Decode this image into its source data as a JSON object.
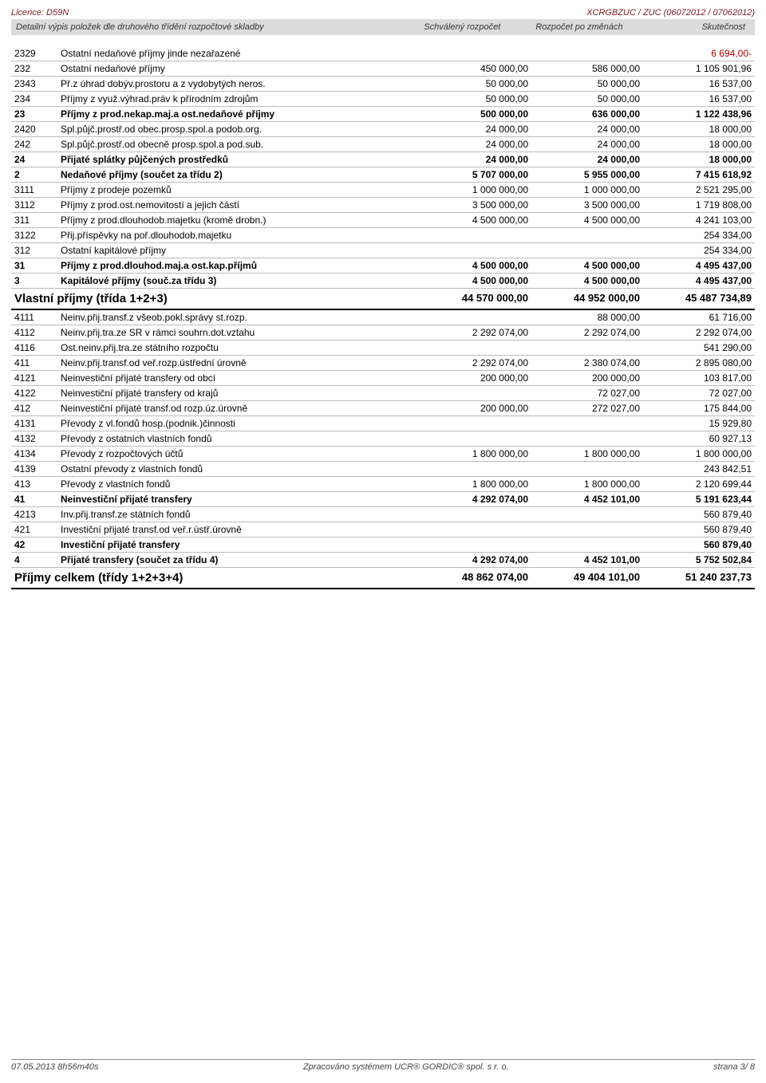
{
  "top": {
    "left": "Licence: D59N",
    "right": "XCRGBZUC / ZUC  (06072012 / 07062012)"
  },
  "header": {
    "label": "Detailní výpis položek dle druhového třídění rozpočtové skladby",
    "c1": "Schválený rozpočet",
    "c2": "Rozpočet po změnách",
    "c3": "Skutečnost"
  },
  "rows": [
    {
      "code": "2329",
      "desc": "Ostatní nedaňové příjmy jinde nezařazené",
      "v": [
        "",
        "",
        "6 694,00-"
      ],
      "red": true
    },
    {
      "code": "232",
      "desc": "Ostatní nedaňové příjmy",
      "v": [
        "450 000,00",
        "586 000,00",
        "1 105 901,96"
      ]
    },
    {
      "code": "2343",
      "desc": "Př.z úhrad dobýv.prostoru a z vydobytých neros.",
      "v": [
        "50 000,00",
        "50 000,00",
        "16 537,00"
      ]
    },
    {
      "code": "234",
      "desc": "Příjmy z využ.výhrad.práv k přírodním zdrojům",
      "v": [
        "50 000,00",
        "50 000,00",
        "16 537,00"
      ]
    },
    {
      "code": "23",
      "desc": "Příjmy z prod.nekap.maj.a ost.nedaňové příjmy",
      "v": [
        "500 000,00",
        "636 000,00",
        "1 122 438,96"
      ],
      "bold": true
    },
    {
      "code": "2420",
      "desc": "Spl.půjč.prostř.od obec.prosp.spol.a podob.org.",
      "v": [
        "24 000,00",
        "24 000,00",
        "18 000,00"
      ]
    },
    {
      "code": "242",
      "desc": "Spl.půjč.prostř.od obecně prosp.spol.a pod.sub.",
      "v": [
        "24 000,00",
        "24 000,00",
        "18 000,00"
      ]
    },
    {
      "code": "24",
      "desc": "Přijaté splátky půjčených prostředků",
      "v": [
        "24 000,00",
        "24 000,00",
        "18 000,00"
      ],
      "bold": true
    },
    {
      "code": "2",
      "desc": "Nedaňové příjmy (součet za třídu 2)",
      "v": [
        "5 707 000,00",
        "5 955 000,00",
        "7 415 618,92"
      ],
      "bold": true
    },
    {
      "code": "3111",
      "desc": "Příjmy z prodeje pozemků",
      "v": [
        "1 000 000,00",
        "1 000 000,00",
        "2 521 295,00"
      ]
    },
    {
      "code": "3112",
      "desc": "Příjmy z prod.ost.nemovitostí a jejich částí",
      "v": [
        "3 500 000,00",
        "3 500 000,00",
        "1 719 808,00"
      ]
    },
    {
      "code": "311",
      "desc": "Příjmy z prod.dlouhodob.majetku (kromě drobn.)",
      "v": [
        "4 500 000,00",
        "4 500 000,00",
        "4 241 103,00"
      ]
    },
    {
      "code": "3122",
      "desc": "Přij.příspěvky na poř.dlouhodob.majetku",
      "v": [
        "",
        "",
        "254 334,00"
      ]
    },
    {
      "code": "312",
      "desc": "Ostatní kapitálové příjmy",
      "v": [
        "",
        "",
        "254 334,00"
      ]
    },
    {
      "code": "31",
      "desc": "Příjmy z prod.dlouhod.maj.a ost.kap.příjmů",
      "v": [
        "4 500 000,00",
        "4 500 000,00",
        "4 495 437,00"
      ],
      "bold": true
    },
    {
      "code": "3",
      "desc": "Kapitálové příjmy (souč.za třídu 3)",
      "v": [
        "4 500 000,00",
        "4 500 000,00",
        "4 495 437,00"
      ],
      "bold": true
    },
    {
      "code": "",
      "desc": "Vlastní příjmy (třída 1+2+3)",
      "v": [
        "44 570 000,00",
        "44 952 000,00",
        "45 487 734,89"
      ],
      "sect": true
    },
    {
      "code": "4111",
      "desc": "Neinv.přij.transf.z všeob.pokl.správy st.rozp.",
      "v": [
        "",
        "88 000,00",
        "61 716,00"
      ]
    },
    {
      "code": "4112",
      "desc": "Neinv.přij.tra.ze SR v rámci souhrn.dot.vztahu",
      "v": [
        "2 292 074,00",
        "2 292 074,00",
        "2 292 074,00"
      ]
    },
    {
      "code": "4116",
      "desc": "Ost.neinv.přij.tra.ze státního rozpočtu",
      "v": [
        "",
        "",
        "541 290,00"
      ]
    },
    {
      "code": "411",
      "desc": "Neinv.přij.transf.od veř.rozp.ústřední úrovně",
      "v": [
        "2 292 074,00",
        "2 380 074,00",
        "2 895 080,00"
      ]
    },
    {
      "code": "4121",
      "desc": "Neinvestiční přijaté transfery od obcí",
      "v": [
        "200 000,00",
        "200 000,00",
        "103 817,00"
      ]
    },
    {
      "code": "4122",
      "desc": "Neinvestiční přijaté transfery od krajů",
      "v": [
        "",
        "72 027,00",
        "72 027,00"
      ]
    },
    {
      "code": "412",
      "desc": "Neinvestiční přijaté transf.od rozp.úz.úrovně",
      "v": [
        "200 000,00",
        "272 027,00",
        "175 844,00"
      ]
    },
    {
      "code": "4131",
      "desc": "Převody z vl.fondů hosp.(podnik.)činnosti",
      "v": [
        "",
        "",
        "15 929,80"
      ]
    },
    {
      "code": "4132",
      "desc": "Převody z ostatních vlastních fondů",
      "v": [
        "",
        "",
        "60 927,13"
      ]
    },
    {
      "code": "4134",
      "desc": "Převody z rozpočtových účtů",
      "v": [
        "1 800 000,00",
        "1 800 000,00",
        "1 800 000,00"
      ]
    },
    {
      "code": "4139",
      "desc": "Ostatní převody z vlastních fondů",
      "v": [
        "",
        "",
        "243 842,51"
      ]
    },
    {
      "code": "413",
      "desc": "Převody z vlastních fondů",
      "v": [
        "1 800 000,00",
        "1 800 000,00",
        "2 120 699,44"
      ]
    },
    {
      "code": "41",
      "desc": "Neinvestiční přijaté transfery",
      "v": [
        "4 292 074,00",
        "4 452 101,00",
        "5 191 623,44"
      ],
      "bold": true
    },
    {
      "code": "4213",
      "desc": "Inv.přij.transf.ze státních fondů",
      "v": [
        "",
        "",
        "560 879,40"
      ]
    },
    {
      "code": "421",
      "desc": "Investiční přijaté transf.od veř.r.ústř.úrovně",
      "v": [
        "",
        "",
        "560 879,40"
      ]
    },
    {
      "code": "42",
      "desc": "Investiční přijaté transfery",
      "v": [
        "",
        "",
        "560 879,40"
      ],
      "bold": true
    },
    {
      "code": "4",
      "desc": "Přijaté transfery (součet za třídu 4)",
      "v": [
        "4 292 074,00",
        "4 452 101,00",
        "5 752 502,84"
      ],
      "bold": true
    },
    {
      "code": "",
      "desc": "Příjmy celkem (třídy 1+2+3+4)",
      "v": [
        "48 862 074,00",
        "49 404 101,00",
        "51 240 237,73"
      ],
      "sect": true
    }
  ],
  "footer": {
    "left": "07.05.2013 8h56m40s",
    "center": "Zpracováno systémem  UCR® GORDIC® spol.  s   r.  o.",
    "right": "strana  3/ 8"
  }
}
